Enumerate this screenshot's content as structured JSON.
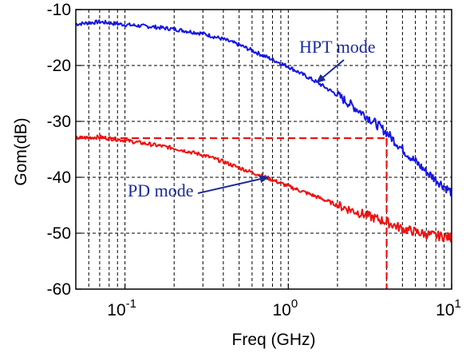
{
  "chart_data": {
    "type": "line",
    "xlabel": "Freq (GHz)",
    "ylabel": "Gom(dB)",
    "x_scale": "log",
    "xlim": [
      0.05,
      10
    ],
    "ylim": [
      -60,
      -10
    ],
    "x_ticks": [
      {
        "value": 0.1,
        "base": "10",
        "exp": "-1"
      },
      {
        "value": 1,
        "base": "10",
        "exp": "0"
      },
      {
        "value": 10,
        "base": "10",
        "exp": "1"
      }
    ],
    "y_ticks": [
      -10,
      -20,
      -30,
      -40,
      -50,
      -60
    ],
    "grid": true,
    "grid_style": "dashed",
    "series": [
      {
        "color": "#1515e6",
        "x": [
          0.05,
          0.07,
          0.1,
          0.15,
          0.2,
          0.3,
          0.4,
          0.5,
          0.7,
          1.0,
          1.5,
          2.0,
          3.0,
          4.0,
          5.0,
          7.0,
          10.0
        ],
        "y": [
          -12.6,
          -12.2,
          -12.7,
          -13.1,
          -13.5,
          -14.3,
          -15.3,
          -16.3,
          -18.2,
          -20.2,
          -23.0,
          -25.3,
          -29.0,
          -32.0,
          -35.0,
          -39.0,
          -42.7
        ]
      },
      {
        "color": "#ee1111",
        "x": [
          0.05,
          0.07,
          0.1,
          0.15,
          0.2,
          0.3,
          0.4,
          0.5,
          0.7,
          1.0,
          1.5,
          2.0,
          3.0,
          4.0,
          5.0,
          7.0,
          10.0
        ],
        "y": [
          -33.0,
          -32.8,
          -33.4,
          -34.2,
          -34.8,
          -36.0,
          -37.2,
          -38.3,
          -39.8,
          -41.6,
          -43.5,
          -45.0,
          -46.8,
          -48.0,
          -49.2,
          -50.2,
          -50.8
        ]
      }
    ],
    "reference_lines": {
      "color": "#ee1111",
      "horizontal_y": -33,
      "vertical_x": 4.0
    },
    "annotations": [
      {
        "text": "HPT mode",
        "color": "#1b2a9c",
        "target_x": 1.5,
        "target_y": -23.0
      },
      {
        "text": "PD mode",
        "color": "#1b2a9c",
        "target_x": 0.75,
        "target_y": -40.0
      }
    ]
  }
}
